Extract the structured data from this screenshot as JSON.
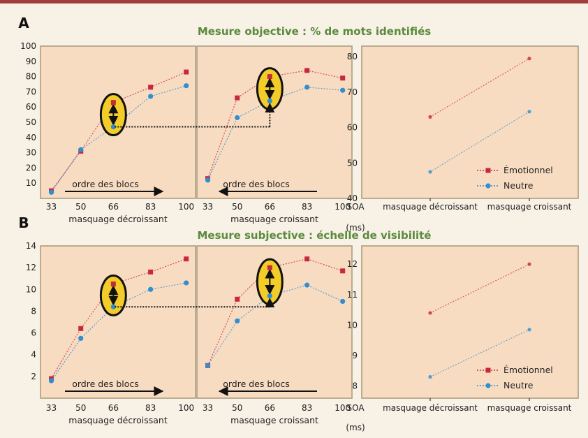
{
  "colors": {
    "emotional": "#c8283c",
    "neutral": "#2f8fd0",
    "panel_bg": "#f8dcc2",
    "frame": "#a79878",
    "title": "#5a8a3c",
    "highlight": "#f3cc2a"
  },
  "annotations": {
    "panel_a_letter": "A",
    "panel_b_letter": "B",
    "arrow_label": "ordre des blocs",
    "soa_label": "SOA",
    "ms_label": "(ms)"
  },
  "chart_data": [
    {
      "panel": "A",
      "type": "line",
      "title": "Mesure objective : % de mots identifiés",
      "ylim": [
        0,
        100
      ],
      "yticks": [
        10,
        20,
        30,
        40,
        50,
        60,
        70,
        80,
        90,
        100
      ],
      "x": [
        33,
        50,
        66,
        83,
        100
      ],
      "subplots": [
        {
          "xlabel": "masquage décroissant",
          "series": [
            {
              "name": "Émotionnel",
              "values": [
                5,
                31,
                63,
                73,
                83
              ]
            },
            {
              "name": "Neutre",
              "values": [
                4,
                32,
                47,
                67,
                74
              ]
            }
          ]
        },
        {
          "xlabel": "masquage croissant",
          "series": [
            {
              "name": "Émotionnel",
              "values": [
                13,
                66,
                80,
                84,
                79
              ]
            },
            {
              "name": "Neutre",
              "values": [
                12,
                53,
                64,
                73,
                71
              ]
            }
          ]
        }
      ],
      "summary": {
        "categories": [
          "masquage décroissant",
          "masquage croissant"
        ],
        "ylim": [
          40,
          83
        ],
        "yticks": [
          40,
          50,
          60,
          70,
          80
        ],
        "series": [
          {
            "name": "Émotionnel",
            "values": [
              63,
              79.5
            ]
          },
          {
            "name": "Neutre",
            "values": [
              47.5,
              64.5
            ]
          }
        ]
      }
    },
    {
      "panel": "B",
      "type": "line",
      "title": "Mesure subjective : échelle de visibilité",
      "ylim": [
        0,
        14
      ],
      "yticks": [
        2,
        4,
        6,
        8,
        10,
        12,
        14
      ],
      "x": [
        33,
        50,
        66,
        83,
        100
      ],
      "subplots": [
        {
          "xlabel": "masquage décroissant",
          "series": [
            {
              "name": "Émotionnel",
              "values": [
                1.8,
                6.4,
                10.5,
                11.6,
                12.8
              ]
            },
            {
              "name": "Neutre",
              "values": [
                1.6,
                5.5,
                8.4,
                10.0,
                10.6
              ]
            }
          ]
        },
        {
          "xlabel": "masquage croissant",
          "series": [
            {
              "name": "Émotionnel",
              "values": [
                3.0,
                9.1,
                12.0,
                12.8,
                11.7
              ]
            },
            {
              "name": "Neutre",
              "values": [
                3.0,
                7.1,
                9.4,
                10.4,
                8.9
              ]
            }
          ]
        }
      ],
      "summary": {
        "categories": [
          "masquage décroissant",
          "masquage croissant"
        ],
        "ylim": [
          7.6,
          12.6
        ],
        "yticks": [
          8,
          9,
          10,
          11,
          12
        ],
        "series": [
          {
            "name": "Émotionnel",
            "values": [
              10.4,
              12.0
            ]
          },
          {
            "name": "Neutre",
            "values": [
              8.3,
              9.85
            ]
          }
        ]
      }
    }
  ]
}
